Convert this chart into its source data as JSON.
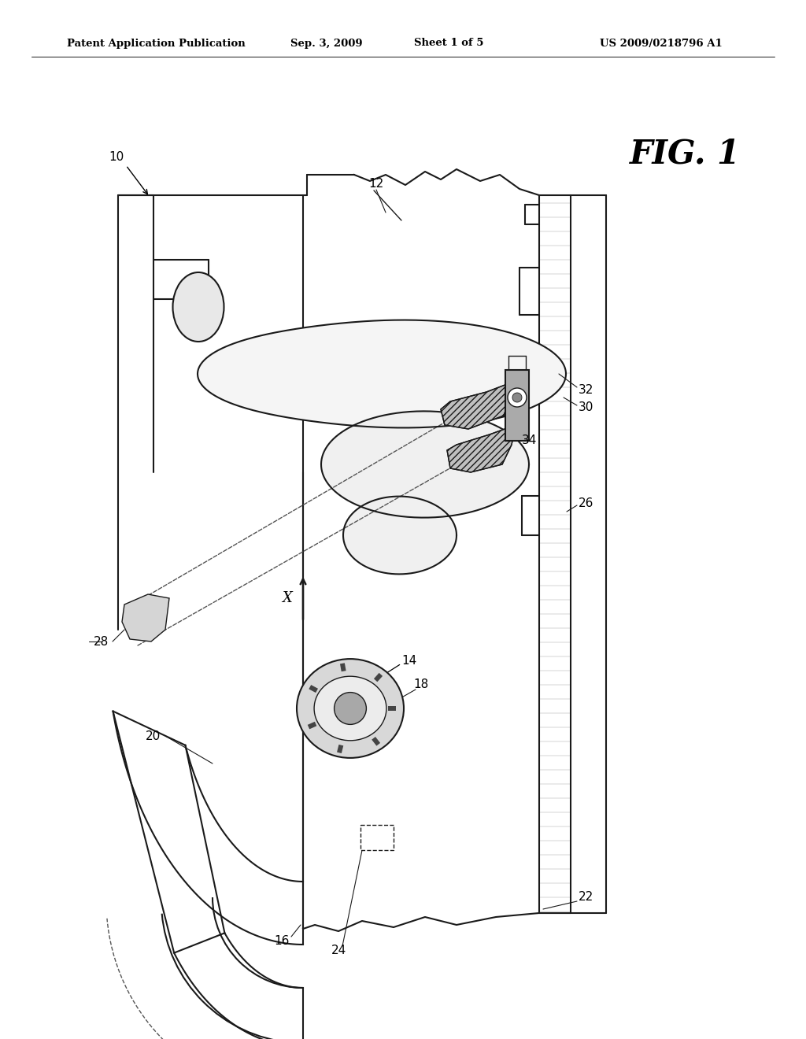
{
  "bg_color": "#ffffff",
  "lc": "#1a1a1a",
  "header_text": "Patent Application Publication",
  "header_date": "Sep. 3, 2009",
  "header_sheet": "Sheet 1 of 5",
  "header_patent": "US 2009/0218796 A1",
  "fig_label": "FIG. 1",
  "header_fontsize": 9.5,
  "label_fontsize": 11,
  "figlabel_fontsize": 30
}
